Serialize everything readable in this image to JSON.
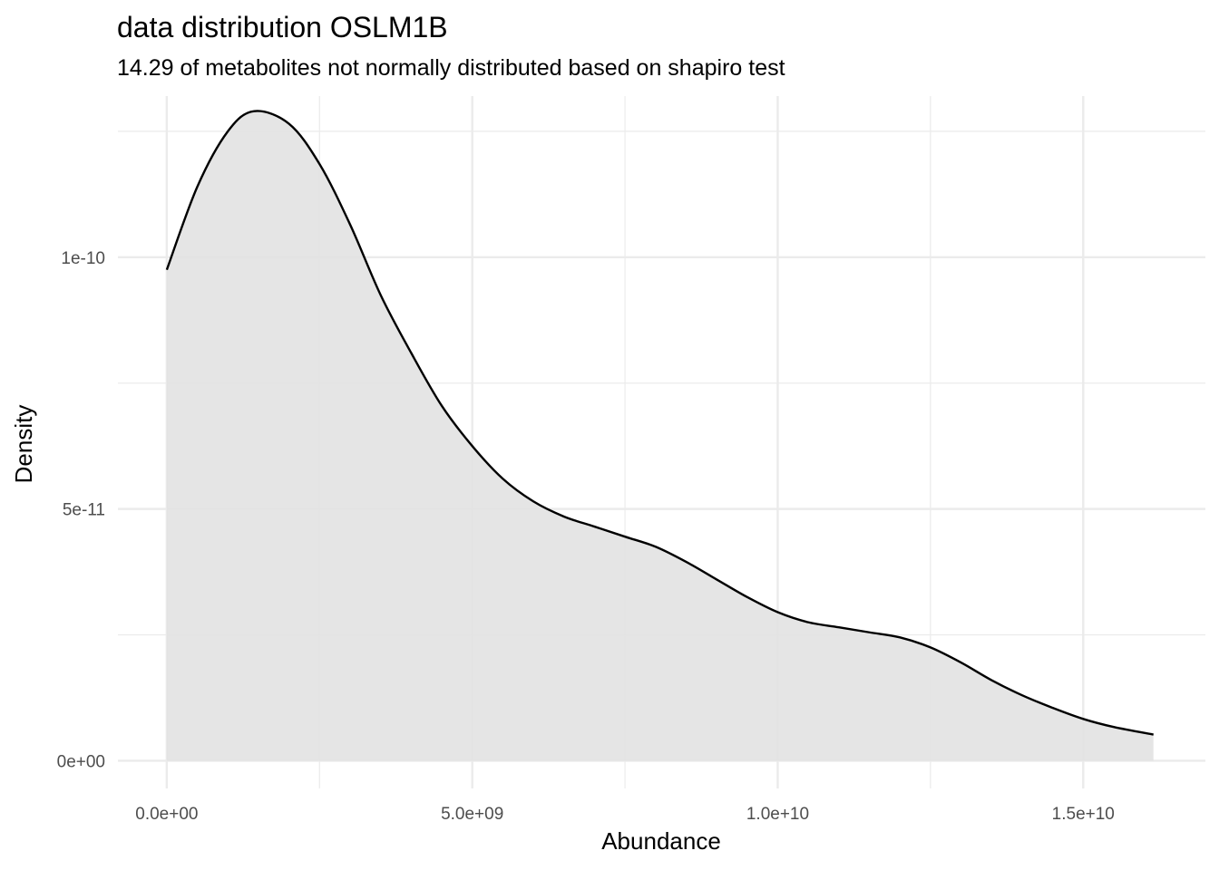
{
  "chart_data": {
    "type": "area",
    "title": "data distribution  OSLM1B",
    "subtitle": "14.29  of metabolites not normally distributed based on  shapiro test",
    "xlabel": "Abundance",
    "ylabel": "Density",
    "xlim": [
      -800000000,
      17000000000
    ],
    "ylim": [
      -5.5e-12,
      1.32e-10
    ],
    "x_ticks": [
      {
        "value": 0,
        "label": "0.0e+00"
      },
      {
        "value": 5000000000,
        "label": "5.0e+09"
      },
      {
        "value": 10000000000,
        "label": "1.0e+10"
      },
      {
        "value": 15000000000,
        "label": "1.5e+10"
      }
    ],
    "y_ticks": [
      {
        "value": 0,
        "label": "0e+00"
      },
      {
        "value": 5e-11,
        "label": "5e-11"
      },
      {
        "value": 1e-10,
        "label": "1e-10"
      }
    ],
    "x_minor": [
      2500000000,
      7500000000,
      12500000000
    ],
    "y_minor": [
      2.5e-11,
      7.5e-11,
      1.25e-10
    ],
    "grid": true,
    "fill_color": "#e2e2e2",
    "line_color": "#000000",
    "grid_color": "#ebebeb",
    "series": [
      {
        "x": [
          0,
          500000000,
          1000000000,
          1430000000,
          2000000000,
          2500000000,
          3000000000,
          3500000000,
          4000000000,
          4500000000,
          5000000000,
          5500000000,
          6000000000,
          6500000000,
          7000000000,
          7500000000,
          8000000000,
          8500000000,
          9000000000,
          9500000000,
          10000000000,
          10500000000,
          11000000000,
          11500000000,
          12000000000,
          12500000000,
          13000000000,
          13500000000,
          14000000000,
          14500000000,
          15000000000,
          15500000000,
          16150000000
        ],
        "y": [
          9.75e-11,
          1.14e-10,
          1.25e-10,
          1.29e-10,
          1.265e-10,
          1.185e-10,
          1.065e-10,
          9.25e-11,
          8.1e-11,
          7.05e-11,
          6.25e-11,
          5.6e-11,
          5.15e-11,
          4.85e-11,
          4.65e-11,
          4.45e-11,
          4.25e-11,
          3.95e-11,
          3.6e-11,
          3.25e-11,
          2.95e-11,
          2.75e-11,
          2.65e-11,
          2.55e-11,
          2.45e-11,
          2.25e-11,
          1.95e-11,
          1.6e-11,
          1.3e-11,
          1.05e-11,
          8.3e-12,
          6.7e-12,
          5.2e-12
        ]
      }
    ]
  }
}
